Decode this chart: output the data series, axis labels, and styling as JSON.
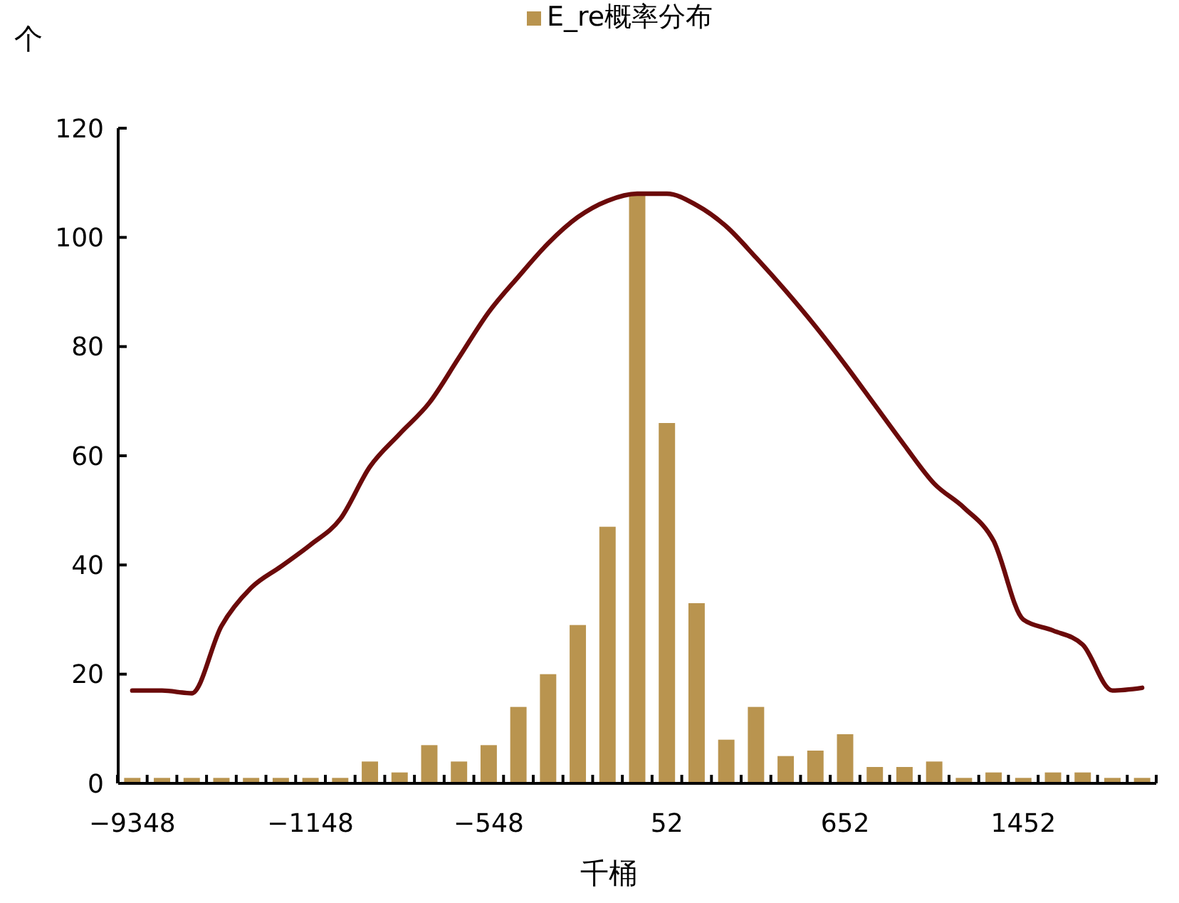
{
  "chart_data": {
    "type": "bar",
    "xlabel": "千桶",
    "ylabel": "个",
    "categories": [
      "−9348",
      null,
      null,
      null,
      null,
      null,
      "−1148",
      null,
      null,
      null,
      null,
      null,
      "−548",
      null,
      null,
      null,
      null,
      null,
      "52",
      null,
      null,
      null,
      null,
      null,
      "652",
      null,
      null,
      null,
      null,
      null,
      "1452",
      null,
      null,
      null,
      null
    ],
    "series": [
      {
        "name": "E_re概率分布",
        "color": "#b9944f",
        "values": [
          1,
          1,
          1,
          1,
          1,
          1,
          1,
          1,
          4,
          2,
          7,
          4,
          7,
          14,
          20,
          29,
          47,
          108,
          66,
          33,
          8,
          14,
          5,
          6,
          9,
          3,
          3,
          4,
          1,
          2,
          1,
          2,
          2,
          1,
          1
        ]
      },
      {
        "type": "line",
        "color": "#6b0a0a",
        "values": [
          17,
          17,
          16.5,
          28.8,
          35.8,
          39.7,
          43.7,
          48.4,
          58,
          64,
          69.7,
          78,
          86.3,
          92.8,
          98.9,
          103.7,
          106.7,
          108,
          108,
          105.9,
          102,
          96.3,
          90.2,
          83.7,
          76.7,
          69.3,
          61.9,
          54.9,
          50.5,
          44.4,
          30,
          28,
          25.4,
          17,
          17.5
        ]
      }
    ],
    "ylim": [
      0,
      120
    ],
    "yticks": [
      0,
      20,
      40,
      60,
      80,
      100,
      120
    ],
    "grid": false,
    "legend": "top",
    "line_style": "solid",
    "marker": "none"
  }
}
